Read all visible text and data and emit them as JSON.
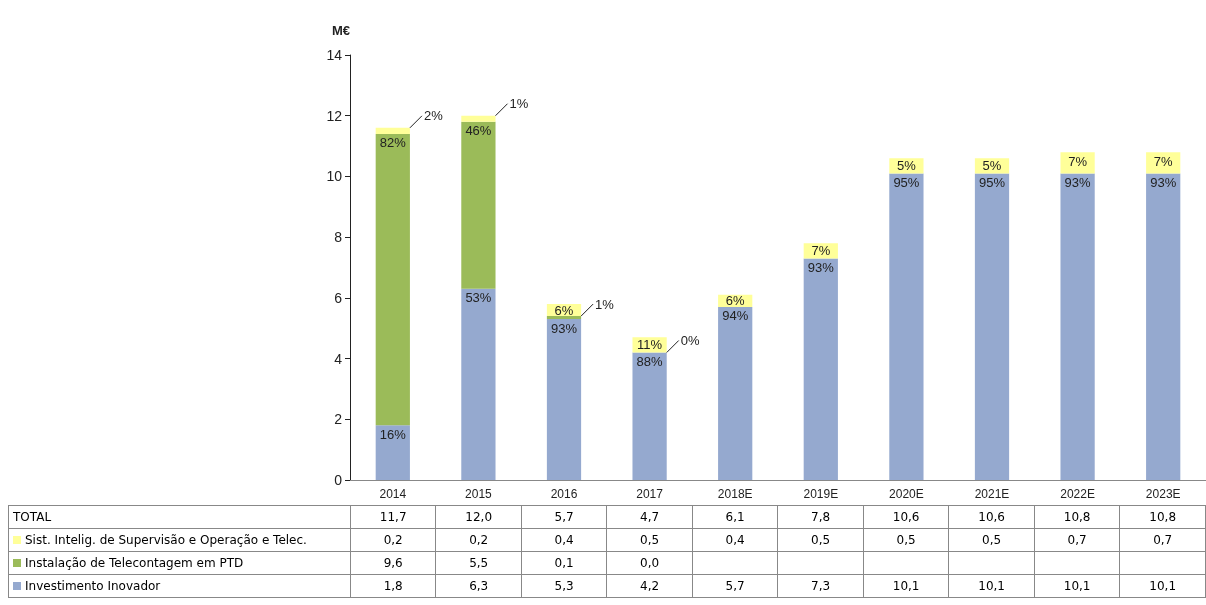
{
  "chart_data": {
    "type": "bar",
    "stacked": true,
    "ylabel": "M€",
    "categories": [
      "2014",
      "2015",
      "2016",
      "2017",
      "2018E",
      "2019E",
      "2020E",
      "2021E",
      "2022E",
      "2023E"
    ],
    "ylim": [
      0,
      14
    ],
    "yticks": [
      0,
      2,
      4,
      6,
      8,
      10,
      12,
      14
    ],
    "grid": false,
    "legend": "bottom",
    "data_labels": true,
    "totals": [
      "11,7",
      "12,0",
      "5,7",
      "4,7",
      "6,1",
      "7,8",
      "10,6",
      "10,6",
      "10,8",
      "10,8"
    ],
    "series": [
      {
        "name": "Investimento Inovador",
        "color": "#95a9cf",
        "values": [
          1.8,
          6.3,
          5.3,
          4.2,
          5.7,
          7.3,
          10.1,
          10.1,
          10.1,
          10.1
        ],
        "value_labels": [
          "1,8",
          "6,3",
          "5,3",
          "4,2",
          "5,7",
          "7,3",
          "10,1",
          "10,1",
          "10,1",
          "10,1"
        ]
      },
      {
        "name": "Instalação de Telecontagem em PTD",
        "color": "#9bbb59",
        "values": [
          9.6,
          5.5,
          0.1,
          0.0,
          null,
          null,
          null,
          null,
          null,
          null
        ],
        "value_labels": [
          "9,6",
          "5,5",
          "0,1",
          "0,0",
          null,
          null,
          null,
          null,
          null,
          null
        ]
      },
      {
        "name": "Sist. Intelig. de Supervisão e Operação e Telec.",
        "color": "#ffff99",
        "values": [
          0.2,
          0.2,
          0.4,
          0.5,
          0.4,
          0.5,
          0.5,
          0.5,
          0.7,
          0.7
        ],
        "value_labels": [
          "0,2",
          "0,2",
          "0,4",
          "0,5",
          "0,4",
          "0,5",
          "0,5",
          "0,5",
          "0,7",
          "0,7"
        ]
      }
    ],
    "annotations": [
      "TOTAL",
      {
        "text": "16%",
        "x": "2014",
        "y": 1.8
      },
      {
        "text": "53%",
        "x": "2015",
        "y": 6.3
      },
      {
        "text": "93%",
        "x": "2016",
        "y": 5.3
      },
      {
        "text": "88%",
        "x": "2017",
        "y": 4.2
      },
      {
        "text": "94%",
        "x": "2018E",
        "y": 5.7
      },
      {
        "text": "93%",
        "x": "2019E",
        "y": 7.3
      },
      {
        "text": "95%",
        "x": "2020E",
        "y": 10.1
      },
      {
        "text": "95%",
        "x": "2021E",
        "y": 10.1
      },
      {
        "text": "93%",
        "x": "2022E",
        "y": 10.1
      },
      {
        "text": "93%",
        "x": "2023E",
        "y": 10.1
      },
      {
        "text": "82%",
        "x": "2014",
        "y": 11.4
      },
      {
        "text": "46%",
        "x": "2015",
        "y": 11.8
      },
      {
        "text": "1%",
        "x": "2016",
        "y": 5.4
      },
      {
        "text": "0%",
        "x": "2017",
        "y": 4.2
      },
      {
        "text": "2%",
        "x": "2014",
        "y": 11.6
      },
      {
        "text": "1%",
        "x": "2015",
        "y": 12.0
      },
      {
        "text": "6%",
        "x": "2016",
        "y": 5.8
      },
      {
        "text": "11%",
        "x": "2017",
        "y": 4.7
      },
      {
        "text": "6%",
        "x": "2018E",
        "y": 6.1
      },
      {
        "text": "7%",
        "x": "2019E",
        "y": 7.8
      },
      {
        "text": "5%",
        "x": "2020E",
        "y": 10.6
      },
      {
        "text": "5%",
        "x": "2021E",
        "y": 10.6
      },
      {
        "text": "7%",
        "x": "2022E",
        "y": 10.8
      },
      {
        "text": "7%",
        "x": "2023E",
        "y": 10.8
      }
    ]
  }
}
